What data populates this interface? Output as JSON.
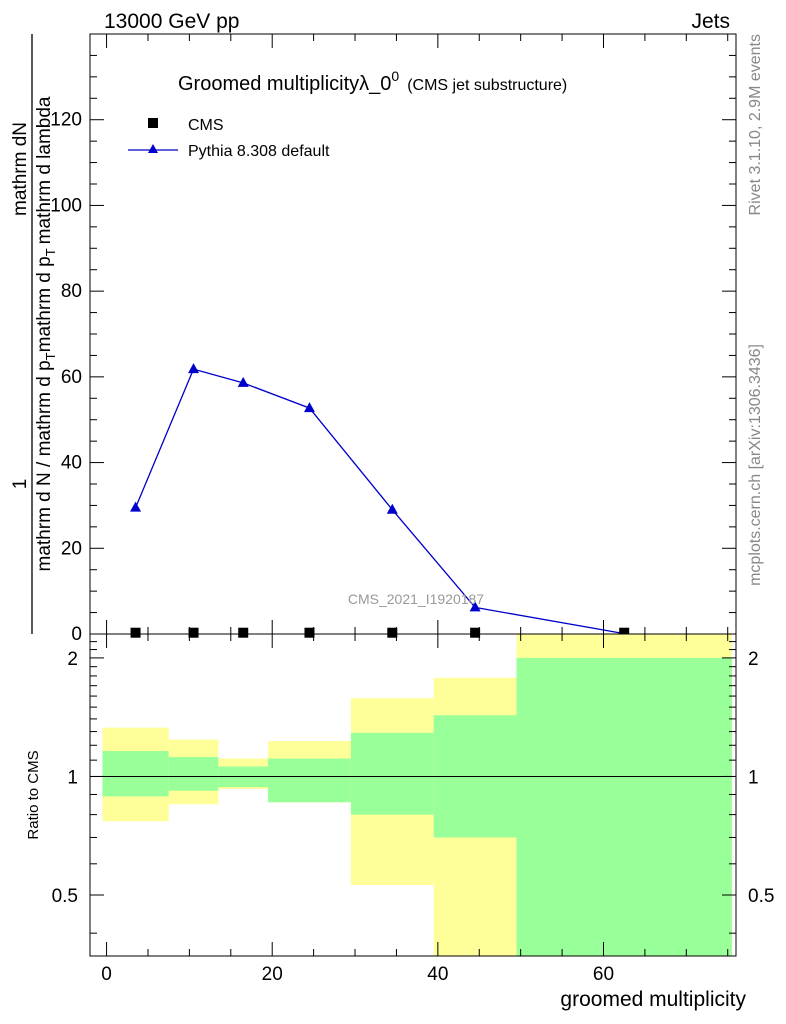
{
  "header": {
    "left": "13000 GeV pp",
    "right": "Jets"
  },
  "side_labels": {
    "rivet": "Rivet 3.1.10,  2.9M events",
    "mcplots": "mcplots.cern.ch [arXiv:1306.3436]"
  },
  "colors": {
    "pythia": "#0000cc",
    "cms": "#000000",
    "band_inner": "#99ff99",
    "band_outer": "#ffff99"
  },
  "chart_data": [
    {
      "type": "line",
      "title_main": "Groomed multiplicityλ_0",
      "title_sup": "0",
      "title_sub": "(CMS jet substructure)",
      "ylabel_frac_num": "1",
      "ylabel_frac_num_line2": "mathrm dN",
      "ylabel_main": "mathrm d N / mathrm d p",
      "ylabel_sub": "T",
      "ylabel_tail": "mathrm d p",
      "ylabel_tail_sub": "T",
      "ylabel_tail2": "mathrm d lambda",
      "watermark": "CMS_2021_I1920187",
      "xlim": [
        -2,
        76
      ],
      "ylim": [
        0,
        140
      ],
      "y_ticks": [
        0,
        20,
        40,
        60,
        80,
        100,
        120
      ],
      "y_tick_labels": [
        "0",
        "20",
        "40",
        "60",
        "80",
        "100",
        "120"
      ],
      "legend": {
        "placement": "top-left",
        "entries": [
          "CMS",
          "Pythia 8.308 default"
        ]
      },
      "series": [
        {
          "name": "CMS",
          "marker": "square",
          "x": [
            3.5,
            10.5,
            16.5,
            24.5,
            34.5,
            44.5,
            62.5
          ],
          "y": [
            0.3,
            0.3,
            0.3,
            0.3,
            0.3,
            0.3,
            0.3
          ]
        },
        {
          "name": "Pythia 8.308 default",
          "marker": "triangle",
          "x": [
            3.5,
            10.5,
            16.5,
            24.5,
            34.5,
            44.5,
            62.5
          ],
          "y": [
            29.5,
            61.8,
            58.6,
            52.7,
            29.0,
            6.2,
            0.1
          ]
        }
      ]
    },
    {
      "type": "area",
      "ylabel": "Ratio to CMS",
      "xlabel": "groomed multiplicity",
      "xlim": [
        -2,
        76
      ],
      "ylim": [
        0.35,
        2.3
      ],
      "y_scale": "log",
      "x_ticks": [
        0,
        20,
        40,
        60
      ],
      "x_tick_labels": [
        "0",
        "20",
        "40",
        "60"
      ],
      "y_ticks": [
        0.5,
        1,
        2
      ],
      "y_tick_labels": [
        "0.5",
        "1",
        "2"
      ],
      "reference_line": 1,
      "bands": [
        {
          "x_low": -0.5,
          "x_high": 7.5,
          "inner": [
            0.89,
            1.16
          ],
          "outer": [
            0.77,
            1.33
          ]
        },
        {
          "x_low": 7.5,
          "x_high": 13.5,
          "inner": [
            0.92,
            1.12
          ],
          "outer": [
            0.85,
            1.24
          ]
        },
        {
          "x_low": 13.5,
          "x_high": 19.5,
          "inner": [
            0.94,
            1.06
          ],
          "outer": [
            0.93,
            1.11
          ]
        },
        {
          "x_low": 19.5,
          "x_high": 29.5,
          "inner": [
            0.86,
            1.11
          ],
          "outer": [
            0.86,
            1.23
          ]
        },
        {
          "x_low": 29.5,
          "x_high": 39.5,
          "inner": [
            0.8,
            1.29
          ],
          "outer": [
            0.53,
            1.58
          ]
        },
        {
          "x_low": 39.5,
          "x_high": 49.5,
          "inner": [
            0.7,
            1.43
          ],
          "outer": [
            0.35,
            1.78
          ]
        },
        {
          "x_low": 49.5,
          "x_high": 75.5,
          "inner": [
            0.35,
            2.0
          ],
          "outer": [
            0.35,
            2.3
          ]
        }
      ]
    }
  ]
}
